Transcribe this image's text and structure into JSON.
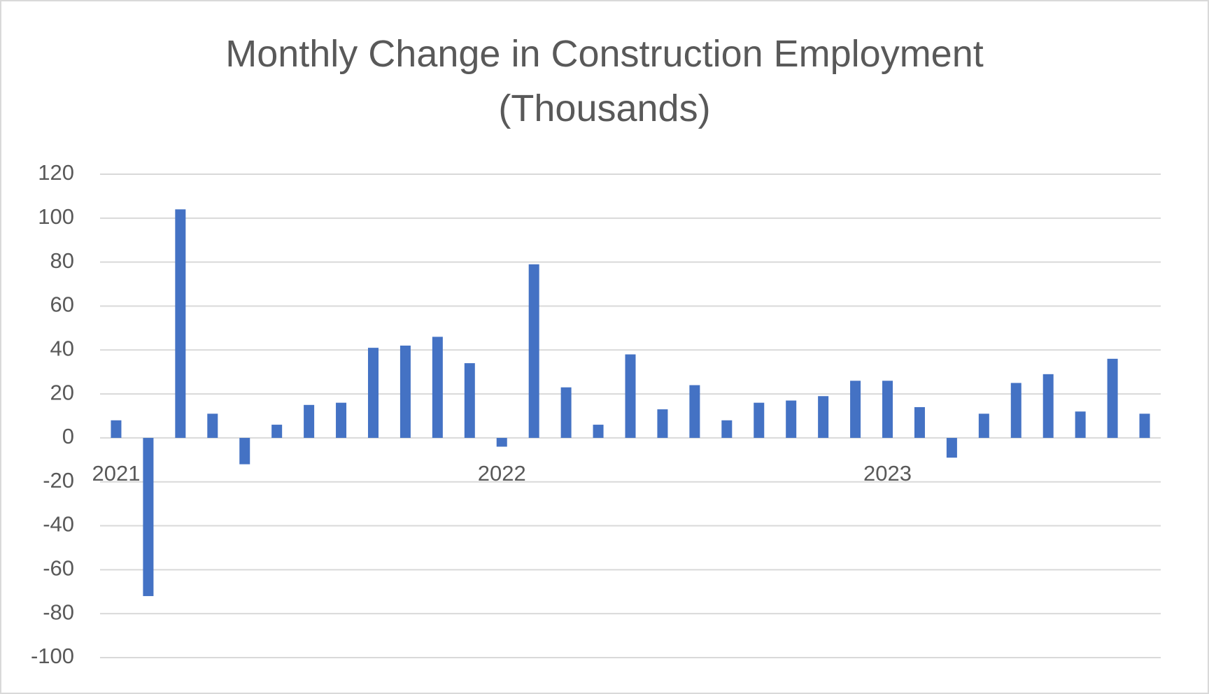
{
  "chart_data": {
    "type": "bar",
    "title": "Monthly Change in Construction Employment (Thousands)",
    "categories": [
      "2021",
      null,
      null,
      null,
      null,
      null,
      null,
      null,
      null,
      null,
      null,
      null,
      "2022",
      null,
      null,
      null,
      null,
      null,
      null,
      null,
      null,
      null,
      null,
      null,
      "2023",
      null,
      null,
      null,
      null,
      null,
      null,
      null,
      null
    ],
    "values": [
      8,
      -72,
      104,
      11,
      -12,
      6,
      15,
      16,
      41,
      42,
      46,
      34,
      -4,
      79,
      23,
      6,
      38,
      13,
      24,
      8,
      16,
      17,
      19,
      26,
      26,
      14,
      -9,
      11,
      25,
      29,
      12,
      36,
      11
    ],
    "color": "#4472c4",
    "ylim": [
      -100,
      120
    ],
    "yticks": [
      -100,
      -80,
      -60,
      -40,
      -20,
      0,
      20,
      40,
      60,
      80,
      100,
      120
    ],
    "grid": true
  }
}
